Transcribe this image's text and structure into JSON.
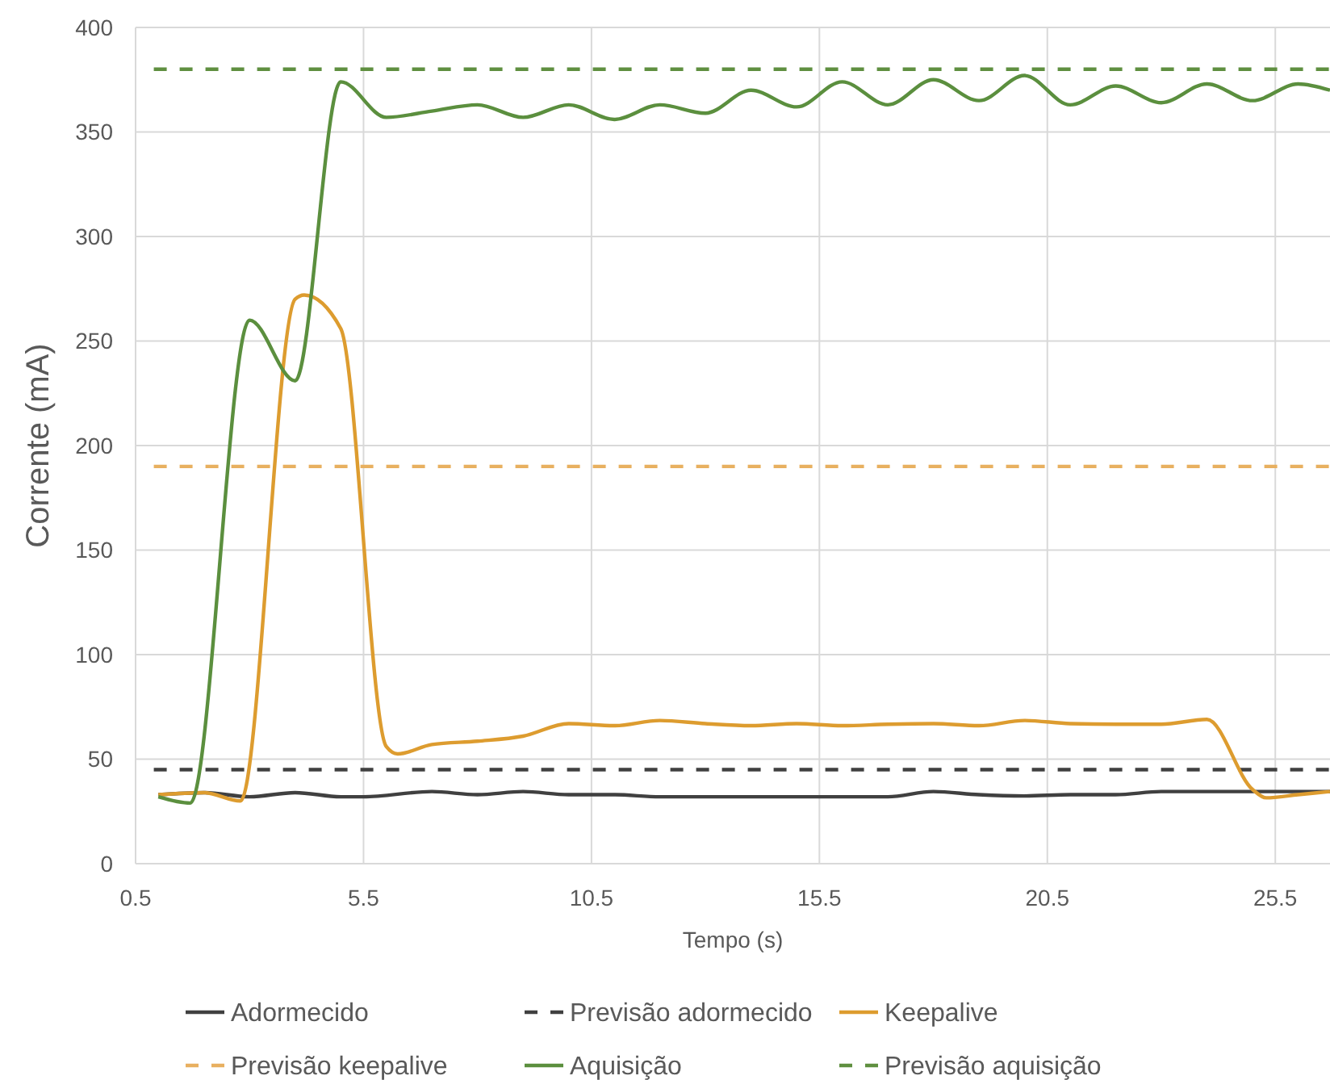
{
  "chart_data": {
    "type": "line",
    "xlabel": "Tempo (s)",
    "ylabel": "Corrente (mA)",
    "xlim": [
      0.5,
      26.7
    ],
    "xticks": [
      0.5,
      5.5,
      10.5,
      15.5,
      20.5,
      25.5
    ],
    "ylim": [
      0,
      400
    ],
    "yticks": [
      0,
      50,
      100,
      150,
      200,
      250,
      300,
      350,
      400
    ],
    "grid": true,
    "legend": "bottom",
    "marker": "none",
    "series": [
      {
        "name": "Adormecido",
        "color": "#404040",
        "x": [
          1,
          2,
          3,
          4,
          5,
          5.5,
          7,
          8,
          9,
          10,
          11,
          12,
          13,
          14,
          15,
          16,
          17,
          18,
          19,
          20,
          21,
          22,
          23,
          24,
          25,
          26,
          26.7
        ],
        "values": [
          33,
          34,
          32,
          34,
          32,
          32,
          34.5,
          33,
          34.5,
          33,
          33,
          32,
          32,
          32,
          32,
          32,
          32,
          34.5,
          33,
          32.4,
          33,
          33,
          34.5,
          34.5,
          34.5,
          34.5,
          34.5
        ]
      },
      {
        "name": "Previsão adormecido",
        "color": "#404040",
        "line_style": "dashed",
        "x": [
          0.9,
          26.7
        ],
        "values": [
          45,
          45
        ]
      },
      {
        "name": "Keepalive",
        "color": "#dd9c2f",
        "x": [
          1,
          2,
          2.8,
          4,
          4.2,
          5,
          6,
          6.25,
          7,
          8,
          9,
          10,
          11,
          12,
          13,
          14,
          15,
          16,
          17,
          18,
          19,
          20,
          21,
          22,
          23,
          24,
          25,
          25.3,
          26,
          26.7
        ],
        "values": [
          33,
          34,
          30,
          270,
          272,
          256,
          56,
          52.5,
          57,
          58.6,
          61,
          67,
          66,
          68.5,
          67,
          66,
          67,
          66,
          66.7,
          67,
          66,
          68.5,
          67,
          66.7,
          66.7,
          69,
          35.5,
          31.5,
          33,
          34.5
        ]
      },
      {
        "name": "Previsão keepalive",
        "color": "#e8b060",
        "line_style": "dashed",
        "x": [
          0.9,
          26.7
        ],
        "values": [
          190,
          190
        ]
      },
      {
        "name": "Aquisição",
        "color": "#5b8f3e",
        "x": [
          1,
          1.7,
          3,
          4,
          5,
          6,
          7,
          8,
          9,
          10,
          11,
          12,
          13,
          14,
          15,
          16,
          17,
          18,
          19,
          20,
          21,
          22,
          23,
          24,
          25,
          26,
          26.7
        ],
        "values": [
          32,
          29,
          260,
          231,
          374,
          357,
          360,
          363,
          357,
          363,
          356,
          363,
          359,
          370,
          362,
          374,
          363,
          375,
          365,
          377,
          363,
          372,
          364,
          373,
          365,
          373,
          370
        ]
      },
      {
        "name": "Previsão aquisição",
        "color": "#5f8f40",
        "line_style": "dashed",
        "x": [
          0.9,
          26.7
        ],
        "values": [
          380,
          380
        ]
      }
    ]
  }
}
